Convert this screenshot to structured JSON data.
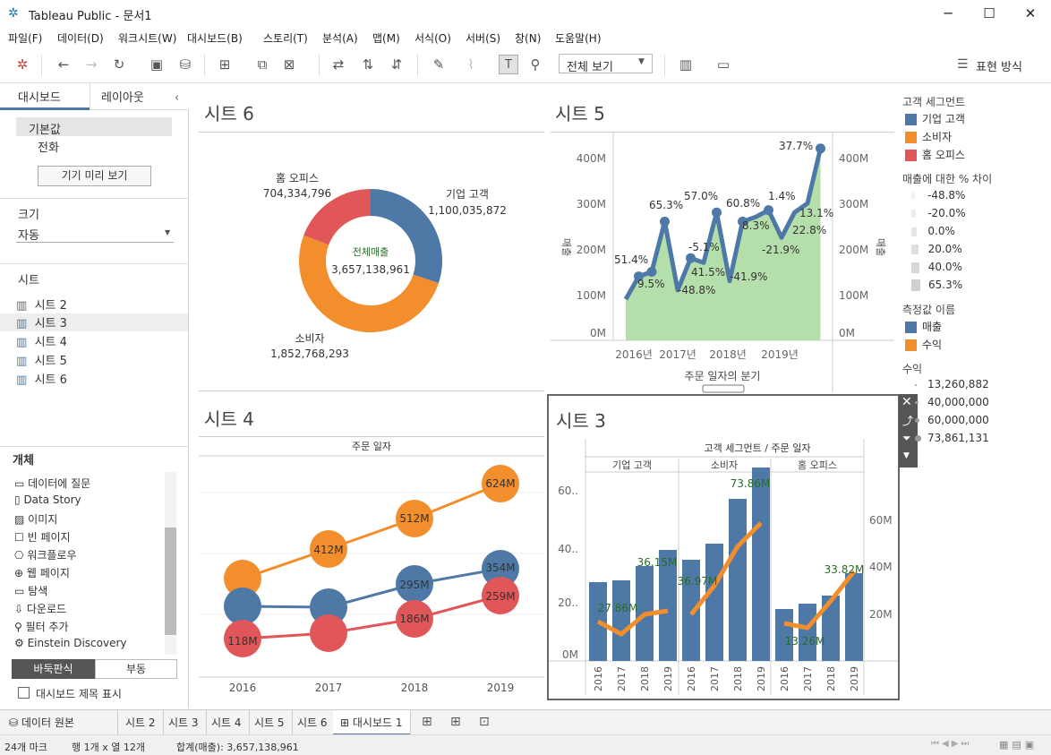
{
  "window": {
    "title": "Tableau Public - 문서1"
  },
  "menu": [
    "파일(F)",
    "데이터(D)",
    "워크시트(W)",
    "대시보드(B)",
    "스토리(T)",
    "분석(A)",
    "맵(M)",
    "서식(O)",
    "서버(S)",
    "창(N)",
    "도움말(H)"
  ],
  "toolbar": {
    "view_select": "전체 보기",
    "show_me": "표현 방식"
  },
  "left_panel": {
    "tab_dashboard": "대시보드",
    "tab_layout": "레이아웃",
    "devices": [
      "기본값",
      "전화"
    ],
    "preview_button": "기기 미리 보기",
    "size_label": "크기",
    "size_value": "자동",
    "sheets_label": "시트",
    "sheets": [
      "시트 2",
      "시트 3",
      "시트 4",
      "시트 5",
      "시트 6"
    ],
    "objects_label": "개체",
    "objects": [
      "데이터에 질문",
      "Data Story",
      "이미지",
      "빈 페이지",
      "워크플로우",
      "웹 페이지",
      "탐색",
      "다운로드",
      "필터 추가",
      "Einstein Discovery"
    ],
    "tiled": "바둑판식",
    "floating": "부동",
    "show_title": "대시보드 제목 표시"
  },
  "sheet6": {
    "title": "시트 6",
    "center_label": "전체매출",
    "center_value": "3,657,138,961",
    "slices": [
      {
        "name": "기업 고객",
        "value": "1,100,035,872",
        "color": "#4e79a7"
      },
      {
        "name": "소비자",
        "value": "1,852,768,293",
        "color": "#f28e2b"
      },
      {
        "name": "홈 오피스",
        "value": "704,334,796",
        "color": "#e15759"
      }
    ]
  },
  "sheet5": {
    "title": "시트 5",
    "y_ticks": [
      "0M",
      "100M",
      "200M",
      "300M",
      "400M"
    ],
    "x_ticks": [
      "2016년",
      "2017년",
      "2018년",
      "2019년"
    ],
    "x_label": "주문 일자의 분기",
    "y_left_label": "매출",
    "y_right_label": "매출",
    "pct_labels": [
      "51.4%",
      "9.5%",
      "65.3%",
      "-48.8%",
      "-5.1%",
      "41.5%",
      "57.0%",
      "60.8%",
      "-41.9%",
      "8.3%",
      "-21.9%",
      "1.4%",
      "37.7%",
      "13.1%",
      "22.8%"
    ]
  },
  "sheet4": {
    "title": "시트 4",
    "header": "주문 일자",
    "x_ticks": [
      "2016",
      "2017",
      "2018",
      "2019"
    ],
    "labels": [
      "624M",
      "512M",
      "412M",
      "354M",
      "295M",
      "259M",
      "186M",
      "118M"
    ]
  },
  "sheet3": {
    "title": "시트 3",
    "header": "고객 세그먼트 / 주문 일자",
    "segments": [
      "기업 고객",
      "소비자",
      "홈 오피스"
    ],
    "left_ticks": [
      "0M",
      "20..",
      "40..",
      "60.."
    ],
    "right_ticks": [
      "20M",
      "40M",
      "60M"
    ],
    "years": [
      "2016",
      "2017",
      "2018",
      "2019"
    ],
    "labels": [
      "27.86M",
      "36.15M",
      "36.97M",
      "73.86M",
      "13.26M",
      "33.82M"
    ]
  },
  "legends": {
    "segment_title": "고객 세그먼트",
    "segments": [
      {
        "name": "기업 고객",
        "color": "#4e79a7"
      },
      {
        "name": "소비자",
        "color": "#f28e2b"
      },
      {
        "name": "홈 오피스",
        "color": "#e15759"
      }
    ],
    "pct_title": "매출에 대한 % 차이",
    "pct_values": [
      "-48.8%",
      "-20.0%",
      "0.0%",
      "20.0%",
      "40.0%",
      "65.3%"
    ],
    "measure_title": "측정값 이름",
    "measures": [
      {
        "name": "매출",
        "color": "#4e79a7"
      },
      {
        "name": "수익",
        "color": "#f28e2b"
      }
    ],
    "profit_title": "수익",
    "profit_values": [
      "13,260,882",
      "40,000,000",
      "60,000,000",
      "73,861,131"
    ]
  },
  "tabs": [
    "데이터 원본",
    "시트 2",
    "시트 3",
    "시트 4",
    "시트 5",
    "시트 6",
    "대시보드 1"
  ],
  "status": {
    "marks": "24개 마크",
    "rows_cols": "행 1개 x 열 12개",
    "sum": "합계(매출): 3,657,138,961"
  }
}
